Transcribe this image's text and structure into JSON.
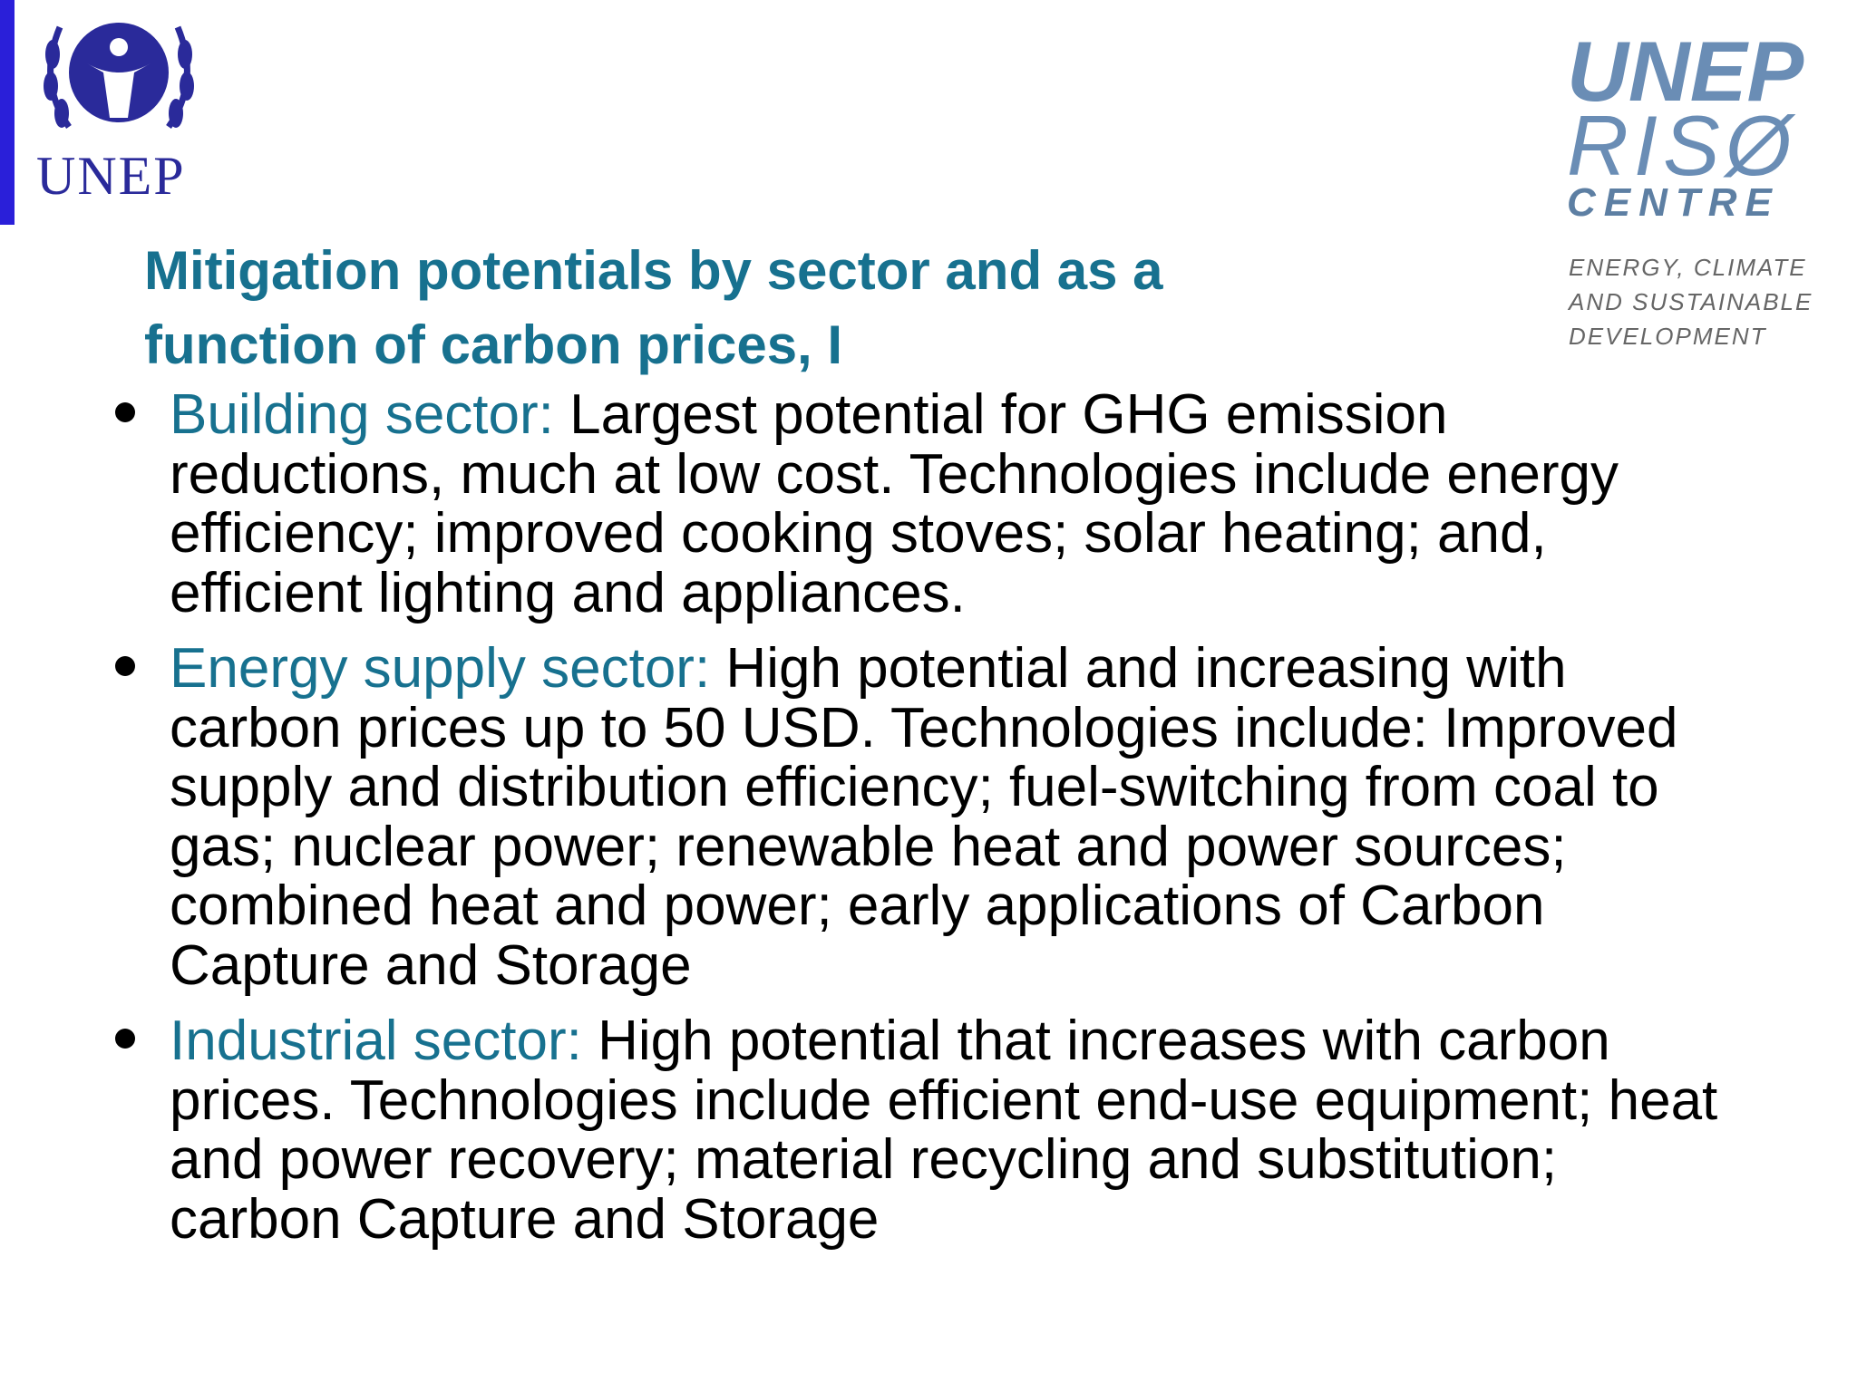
{
  "logo_left": {
    "text": "UNEP"
  },
  "logo_right": {
    "line1": "UNEP",
    "line2": "RISØ",
    "line3": "CENTRE",
    "tagline": [
      "ENERGY, CLIMATE",
      "AND SUSTAINABLE",
      "DEVELOPMENT"
    ]
  },
  "title": [
    "Mitigation potentials by sector and as a",
    "function of carbon prices, I"
  ],
  "bullets": [
    {
      "label": "Building sector:",
      "text": "Largest potential for GHG emission reductions, much at low cost. Technologies include energy efficiency; improved cooking stoves; solar heating; and, efficient lighting and appliances."
    },
    {
      "label": "Energy supply sector:",
      "text": "High potential and increasing with carbon prices up to 50 USD. Technologies include: Improved supply and distribution efficiency; fuel-switching from coal to gas; nuclear power; renewable heat and power sources; combined heat and power; early applications of Carbon Capture and Storage"
    },
    {
      "label": "Industrial sector:",
      "text": "High potential that increases with carbon prices. Technologies include efficient end-use equipment; heat and power recovery; material recycling and substitution; carbon Capture and Storage"
    }
  ]
}
